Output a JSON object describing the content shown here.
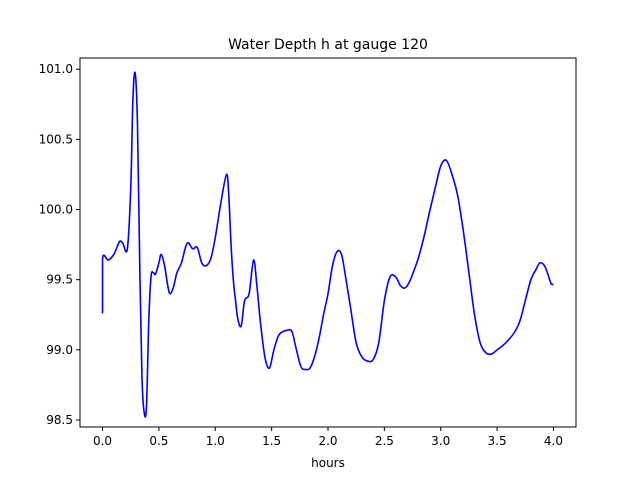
{
  "chart_data": {
    "type": "line",
    "title": "Water Depth h at gauge 120",
    "xlabel": "hours",
    "ylabel": "",
    "xlim": [
      -0.2,
      4.2
    ],
    "ylim": [
      98.45,
      101.08
    ],
    "xticks": [
      0.0,
      0.5,
      1.0,
      1.5,
      2.0,
      2.5,
      3.0,
      3.5,
      4.0
    ],
    "xtick_labels": [
      "0.0",
      "0.5",
      "1.0",
      "1.5",
      "2.0",
      "2.5",
      "3.0",
      "3.5",
      "4.0"
    ],
    "yticks": [
      98.5,
      99.0,
      99.5,
      100.0,
      100.5,
      101.0
    ],
    "ytick_labels": [
      "98.5",
      "99.0",
      "99.5",
      "100.0",
      "100.5",
      "101.0"
    ],
    "grid": false,
    "series": [
      {
        "color": "#0000ff",
        "x": [
          0.0,
          0.0,
          0.05,
          0.1,
          0.15,
          0.18,
          0.22,
          0.25,
          0.27,
          0.29,
          0.31,
          0.33,
          0.35,
          0.37,
          0.39,
          0.41,
          0.43,
          0.45,
          0.47,
          0.5,
          0.52,
          0.55,
          0.58,
          0.6,
          0.63,
          0.66,
          0.7,
          0.75,
          0.8,
          0.84,
          0.88,
          0.92,
          0.96,
          1.0,
          1.05,
          1.1,
          1.12,
          1.14,
          1.16,
          1.18,
          1.2,
          1.23,
          1.26,
          1.3,
          1.34,
          1.37,
          1.4,
          1.44,
          1.48,
          1.52,
          1.56,
          1.6,
          1.64,
          1.68,
          1.72,
          1.76,
          1.8,
          1.84,
          1.88,
          1.92,
          1.96,
          2.0,
          2.04,
          2.08,
          2.12,
          2.16,
          2.2,
          2.25,
          2.3,
          2.35,
          2.4,
          2.45,
          2.5,
          2.55,
          2.6,
          2.64,
          2.68,
          2.72,
          2.76,
          2.8,
          2.85,
          2.9,
          2.95,
          3.0,
          3.05,
          3.1,
          3.15,
          3.2,
          3.25,
          3.3,
          3.35,
          3.4,
          3.45,
          3.5,
          3.55,
          3.6,
          3.65,
          3.7,
          3.75,
          3.8,
          3.85,
          3.88,
          3.92,
          3.95,
          3.98,
          4.0
        ],
        "y": [
          99.26,
          99.65,
          99.64,
          99.68,
          99.77,
          99.76,
          99.72,
          100.15,
          100.8,
          100.97,
          100.6,
          99.6,
          98.8,
          98.55,
          98.6,
          99.2,
          99.52,
          99.55,
          99.54,
          99.62,
          99.68,
          99.6,
          99.45,
          99.4,
          99.45,
          99.55,
          99.62,
          99.76,
          99.72,
          99.73,
          99.62,
          99.6,
          99.65,
          99.8,
          100.05,
          100.25,
          100.1,
          99.75,
          99.5,
          99.35,
          99.22,
          99.17,
          99.35,
          99.4,
          99.64,
          99.45,
          99.2,
          98.95,
          98.87,
          99.0,
          99.1,
          99.13,
          99.14,
          99.13,
          99.0,
          98.88,
          98.86,
          98.87,
          98.95,
          99.08,
          99.25,
          99.4,
          99.6,
          99.7,
          99.68,
          99.5,
          99.3,
          99.05,
          98.95,
          98.92,
          98.93,
          99.05,
          99.35,
          99.52,
          99.52,
          99.46,
          99.44,
          99.48,
          99.56,
          99.65,
          99.8,
          99.98,
          100.15,
          100.31,
          100.35,
          100.25,
          100.1,
          99.85,
          99.55,
          99.25,
          99.05,
          98.98,
          98.97,
          99.0,
          99.03,
          99.07,
          99.12,
          99.2,
          99.35,
          99.5,
          99.58,
          99.62,
          99.6,
          99.54,
          99.47,
          99.47
        ]
      }
    ]
  }
}
